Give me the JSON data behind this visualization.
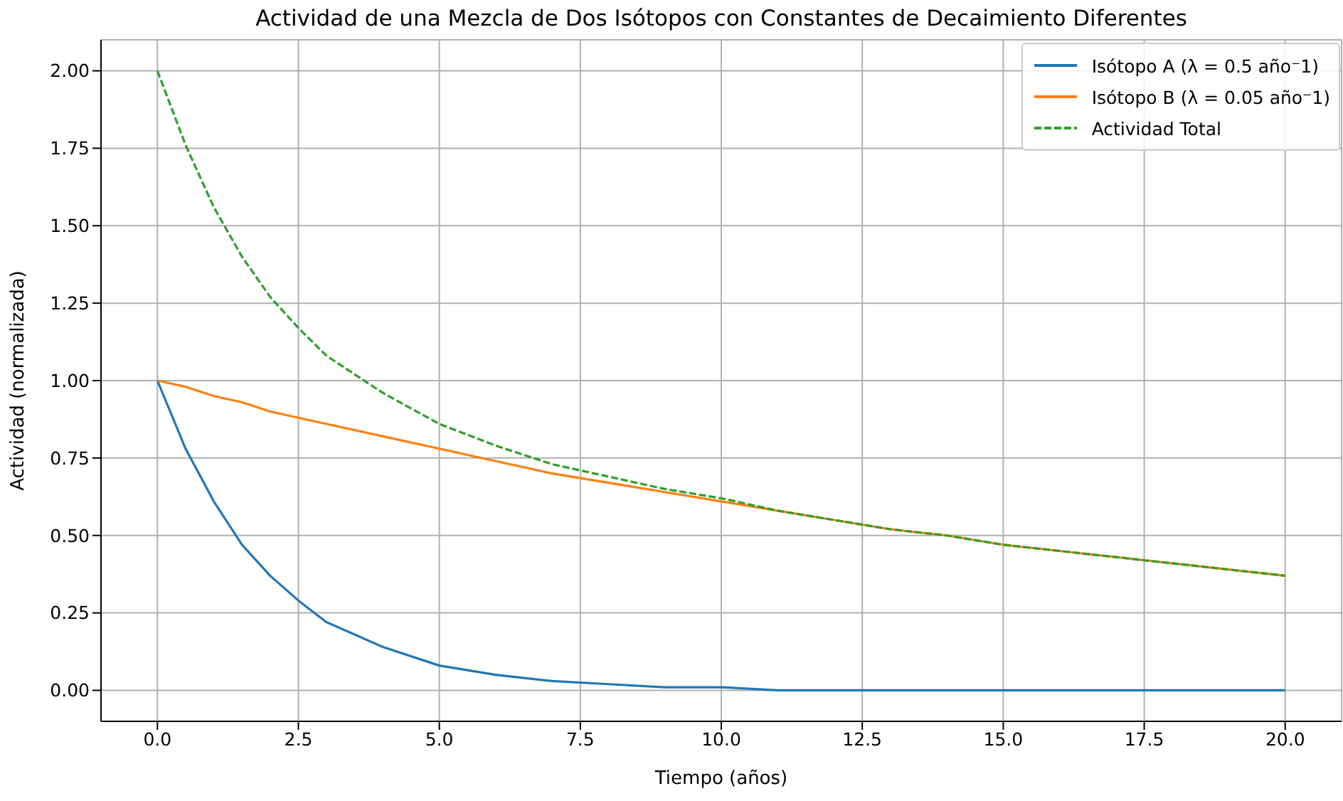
{
  "chart_data": {
    "type": "line",
    "title": "Actividad de una Mezcla de Dos Isótopos con Constantes de Decaimiento Diferentes",
    "xlabel": "Tiempo (años)",
    "ylabel": "Actividad (normalizada)",
    "x": [
      0,
      0.5,
      1,
      1.5,
      2,
      2.5,
      3,
      4,
      5,
      6,
      7,
      8,
      9,
      10,
      11,
      12,
      13,
      14,
      15,
      16,
      17,
      18,
      19,
      20
    ],
    "series": [
      {
        "name": "Isótopo A (λ = 0.5 año⁻1)",
        "color": "#1f77b4",
        "line_style": "solid",
        "values": [
          1,
          0.78,
          0.61,
          0.47,
          0.37,
          0.29,
          0.22,
          0.14,
          0.08,
          0.05,
          0.03,
          0.02,
          0.01,
          0.01,
          0,
          0,
          0,
          0,
          0,
          0,
          0,
          0,
          0,
          0
        ]
      },
      {
        "name": "Isótopo B (λ = 0.05 año⁻1)",
        "color": "#ff7f0e",
        "line_style": "solid",
        "values": [
          1,
          0.98,
          0.95,
          0.93,
          0.9,
          0.88,
          0.86,
          0.82,
          0.78,
          0.74,
          0.7,
          0.67,
          0.64,
          0.61,
          0.58,
          0.55,
          0.52,
          0.5,
          0.47,
          0.45,
          0.43,
          0.41,
          0.39,
          0.37
        ]
      },
      {
        "name": "Actividad Total",
        "color": "#2ca02c",
        "line_style": "dashed",
        "values": [
          2,
          1.76,
          1.56,
          1.4,
          1.27,
          1.17,
          1.08,
          0.96,
          0.86,
          0.79,
          0.73,
          0.69,
          0.65,
          0.62,
          0.58,
          0.55,
          0.52,
          0.5,
          0.47,
          0.45,
          0.43,
          0.41,
          0.39,
          0.37
        ]
      }
    ],
    "xlim": [
      -1,
      21
    ],
    "xticks": [
      {
        "value": 0,
        "label": "0.0"
      },
      {
        "value": 2.5,
        "label": "2.5"
      },
      {
        "value": 5,
        "label": "5.0"
      },
      {
        "value": 7.5,
        "label": "7.5"
      },
      {
        "value": 10,
        "label": "10.0"
      },
      {
        "value": 12.5,
        "label": "12.5"
      },
      {
        "value": 15,
        "label": "15.0"
      },
      {
        "value": 17.5,
        "label": "17.5"
      },
      {
        "value": 20,
        "label": "20.0"
      }
    ],
    "ylim": [
      -0.1,
      2.1
    ],
    "yticks": [
      {
        "value": 0,
        "label": "0.00"
      },
      {
        "value": 0.25,
        "label": "0.25"
      },
      {
        "value": 0.5,
        "label": "0.50"
      },
      {
        "value": 0.75,
        "label": "0.75"
      },
      {
        "value": 1,
        "label": "1.00"
      },
      {
        "value": 1.25,
        "label": "1.25"
      },
      {
        "value": 1.5,
        "label": "1.50"
      },
      {
        "value": 1.75,
        "label": "1.75"
      },
      {
        "value": 2,
        "label": "2.00"
      }
    ],
    "grid": true,
    "legend": "top right",
    "marker": "none"
  }
}
